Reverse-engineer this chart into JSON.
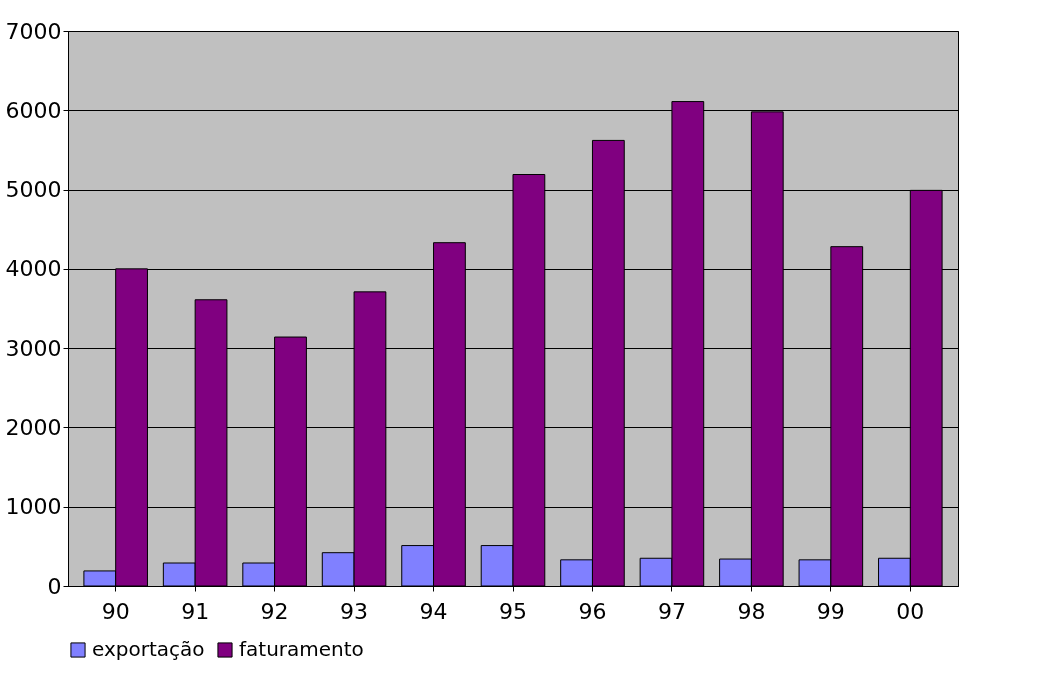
{
  "chart_data": {
    "type": "bar",
    "categories": [
      "90",
      "91",
      "92",
      "93",
      "94",
      "95",
      "96",
      "97",
      "98",
      "99",
      "00"
    ],
    "series": [
      {
        "name": "exportação",
        "color": "#8080ff",
        "values": [
          190,
          290,
          290,
          420,
          510,
          510,
          330,
          350,
          340,
          330,
          350
        ]
      },
      {
        "name": "faturamento",
        "color": "#800080",
        "values": [
          4000,
          3610,
          3140,
          3710,
          4330,
          5190,
          5620,
          6110,
          5980,
          4280,
          4990
        ]
      }
    ],
    "ylim": [
      0,
      7000
    ],
    "yticks": [
      0,
      1000,
      2000,
      3000,
      4000,
      5000,
      6000,
      7000
    ],
    "grid": "y",
    "legend": "bottom"
  }
}
